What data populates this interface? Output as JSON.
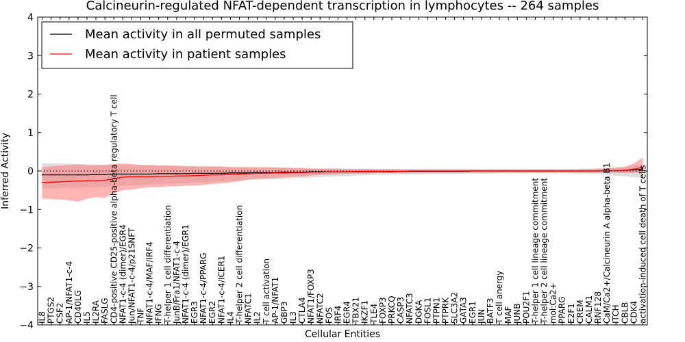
{
  "chart_data": {
    "type": "line",
    "title": "Calcineurin-regulated NFAT-dependent transcription in lymphocytes -- 264 samples",
    "xlabel": "Cellular Entities",
    "ylabel": "Inferred Activity",
    "ylim": [
      -4,
      4
    ],
    "yticks": [
      -4,
      -3,
      -2,
      -1,
      0,
      1,
      2,
      3,
      4
    ],
    "ytick_labels": [
      "−4",
      "−3",
      "−2",
      "−1",
      "0",
      "1",
      "2",
      "3",
      "4"
    ],
    "reference_line": 0,
    "legend_position": "upper-left",
    "categories": [
      "IL8",
      "PTGS2",
      "CSF2",
      "AP-1/NFAT1-c-4",
      "CD40LG",
      "IL5",
      "IL2RA",
      "FASLG",
      "CD4-positive CD25-positive alpha-beta regulatory T cell",
      "NFAT1-c-4 (dimer)/EGR4",
      "Jun/NFAT1-c-4/p21SNFT",
      "TNF",
      "NFAT1-c-4/MAF/IRF4",
      "IFNG",
      "T-helper 1 cell differentiation",
      "JunB/Fra1/NFAT1-c-4",
      "NFAT1-c-4 (dimer)/EGR1",
      "EGR3",
      "NFAT1-c-4/PPARG",
      "EGR2",
      "NFAT1-c-4/ICER1",
      "IL4",
      "T-helper 2 cell differentiation",
      "NFATC1",
      "IL2",
      "T cell activation",
      "AP-1/NFAT1",
      "GBP3",
      "IL3",
      "CTLA4",
      "NFAT1/FOXP3",
      "NFATC2",
      "FOS",
      "IRF4",
      "EGR4",
      "TBX21",
      "IKZF1",
      "TLE4",
      "FOXP3",
      "PRKCQ",
      "CASP3",
      "NFATC3",
      "DGKA",
      "FOSL1",
      "PTPN1",
      "PTPRK",
      "SLC3A2",
      "GATA3",
      "EGR1",
      "JUN",
      "BATF3",
      "T cell anergy",
      "MAF",
      "JUNB",
      "POU2F1",
      "T-helper 1 cell lineage commitment",
      "T-helper 2 cell lineage commitment",
      "mol:Ca2+",
      "PPARG",
      "E2F1",
      "CREM",
      "CALM1",
      "RNF128",
      "CaM/Ca2+/Calcineurin A alpha-beta B1",
      "ITCH",
      "CBLB",
      "CDK4",
      "activation-induced cell death of T cells"
    ],
    "series": [
      {
        "name": "Mean activity in all permuted samples",
        "color": "#000000",
        "band_color": "#c8c8c8",
        "values": [
          -0.1,
          -0.1,
          -0.1,
          -0.1,
          -0.1,
          -0.1,
          -0.09,
          -0.09,
          -0.08,
          -0.08,
          -0.08,
          -0.08,
          -0.08,
          -0.07,
          -0.07,
          -0.07,
          -0.07,
          -0.06,
          -0.06,
          -0.06,
          -0.06,
          -0.05,
          -0.05,
          -0.05,
          -0.04,
          -0.04,
          -0.04,
          -0.03,
          -0.03,
          -0.03,
          -0.02,
          -0.02,
          -0.02,
          -0.02,
          -0.02,
          -0.02,
          -0.02,
          -0.02,
          -0.02,
          -0.02,
          -0.01,
          -0.01,
          -0.01,
          -0.01,
          -0.01,
          -0.01,
          -0.01,
          -0.01,
          0.0,
          0.0,
          0.0,
          0.0,
          0.0,
          0.0,
          0.0,
          0.0,
          0.0,
          0.0,
          0.0,
          0.0,
          0.0,
          0.0,
          0.0,
          0.01,
          0.01,
          0.02,
          0.03,
          0.05
        ],
        "lower": [
          -0.45,
          -0.45,
          -0.44,
          -0.44,
          -0.43,
          -0.42,
          -0.42,
          -0.41,
          -0.4,
          -0.38,
          -0.37,
          -0.36,
          -0.35,
          -0.34,
          -0.33,
          -0.32,
          -0.31,
          -0.3,
          -0.29,
          -0.28,
          -0.27,
          -0.26,
          -0.25,
          -0.24,
          -0.23,
          -0.22,
          -0.21,
          -0.2,
          -0.19,
          -0.18,
          -0.17,
          -0.16,
          -0.15,
          -0.14,
          -0.13,
          -0.12,
          -0.11,
          -0.1,
          -0.1,
          -0.09,
          -0.09,
          -0.09,
          -0.09,
          -0.08,
          -0.08,
          -0.08,
          -0.08,
          -0.07,
          -0.07,
          -0.07,
          -0.07,
          -0.06,
          -0.06,
          -0.06,
          -0.06,
          -0.06,
          -0.06,
          -0.06,
          -0.06,
          -0.06,
          -0.07,
          -0.07,
          -0.08,
          -0.1,
          -0.12,
          -0.14,
          -0.16,
          -0.18
        ],
        "upper": [
          0.2,
          0.2,
          0.19,
          0.19,
          0.18,
          0.17,
          0.17,
          0.16,
          0.16,
          0.15,
          0.15,
          0.14,
          0.14,
          0.13,
          0.13,
          0.12,
          0.12,
          0.12,
          0.11,
          0.11,
          0.11,
          0.1,
          0.1,
          0.1,
          0.09,
          0.09,
          0.09,
          0.08,
          0.08,
          0.08,
          0.07,
          0.07,
          0.07,
          0.06,
          0.06,
          0.06,
          0.06,
          0.05,
          0.05,
          0.05,
          0.05,
          0.05,
          0.05,
          0.05,
          0.05,
          0.05,
          0.05,
          0.05,
          0.05,
          0.05,
          0.05,
          0.05,
          0.05,
          0.05,
          0.05,
          0.05,
          0.05,
          0.05,
          0.05,
          0.05,
          0.06,
          0.06,
          0.07,
          0.08,
          0.1,
          0.12,
          0.14,
          0.17
        ]
      },
      {
        "name": "Mean activity in patient samples",
        "color": "#ff0000",
        "band_color": "#ff7777",
        "values": [
          -0.3,
          -0.29,
          -0.28,
          -0.27,
          -0.26,
          -0.25,
          -0.25,
          -0.24,
          -0.2,
          -0.16,
          -0.15,
          -0.15,
          -0.15,
          -0.14,
          -0.14,
          -0.13,
          -0.13,
          -0.12,
          -0.11,
          -0.1,
          -0.1,
          -0.09,
          -0.08,
          -0.07,
          -0.06,
          -0.06,
          -0.05,
          -0.05,
          -0.04,
          -0.04,
          -0.03,
          -0.03,
          -0.02,
          -0.02,
          -0.02,
          -0.01,
          -0.01,
          -0.01,
          -0.01,
          -0.01,
          -0.01,
          0.0,
          0.0,
          0.0,
          0.0,
          0.0,
          0.0,
          0.0,
          0.0,
          0.0,
          0.0,
          0.0,
          0.0,
          0.0,
          0.0,
          0.0,
          0.0,
          0.0,
          0.0,
          0.0,
          0.0,
          0.0,
          0.0,
          0.01,
          0.01,
          0.02,
          0.05,
          0.1
        ],
        "lower": [
          -0.72,
          -0.73,
          -0.74,
          -0.76,
          -0.8,
          -0.72,
          -0.68,
          -0.7,
          -0.58,
          -0.5,
          -0.48,
          -0.45,
          -0.42,
          -0.42,
          -0.4,
          -0.4,
          -0.38,
          -0.38,
          -0.36,
          -0.34,
          -0.32,
          -0.3,
          -0.26,
          -0.22,
          -0.2,
          -0.19,
          -0.18,
          -0.16,
          -0.15,
          -0.14,
          -0.12,
          -0.1,
          -0.09,
          -0.08,
          -0.07,
          -0.06,
          -0.06,
          -0.05,
          -0.05,
          -0.05,
          -0.05,
          -0.04,
          -0.04,
          -0.04,
          -0.04,
          -0.04,
          -0.04,
          -0.04,
          -0.04,
          -0.04,
          -0.04,
          -0.04,
          -0.04,
          -0.04,
          -0.04,
          -0.04,
          -0.04,
          -0.04,
          -0.04,
          -0.04,
          -0.04,
          -0.04,
          -0.04,
          -0.04,
          -0.05,
          -0.05,
          -0.05,
          -0.05
        ],
        "upper": [
          0.1,
          0.12,
          0.14,
          0.16,
          0.17,
          0.15,
          0.15,
          0.16,
          0.18,
          0.2,
          0.18,
          0.16,
          0.16,
          0.15,
          0.15,
          0.14,
          0.13,
          0.12,
          0.12,
          0.12,
          0.12,
          0.1,
          0.1,
          0.1,
          0.1,
          0.1,
          0.09,
          0.09,
          0.08,
          0.08,
          0.06,
          0.06,
          0.06,
          0.06,
          0.05,
          0.05,
          0.05,
          0.05,
          0.05,
          0.05,
          0.04,
          0.04,
          0.04,
          0.04,
          0.04,
          0.04,
          0.04,
          0.04,
          0.04,
          0.04,
          0.04,
          0.04,
          0.04,
          0.04,
          0.04,
          0.04,
          0.04,
          0.04,
          0.04,
          0.04,
          0.04,
          0.05,
          0.06,
          0.07,
          0.08,
          0.1,
          0.2,
          0.35
        ]
      }
    ]
  }
}
